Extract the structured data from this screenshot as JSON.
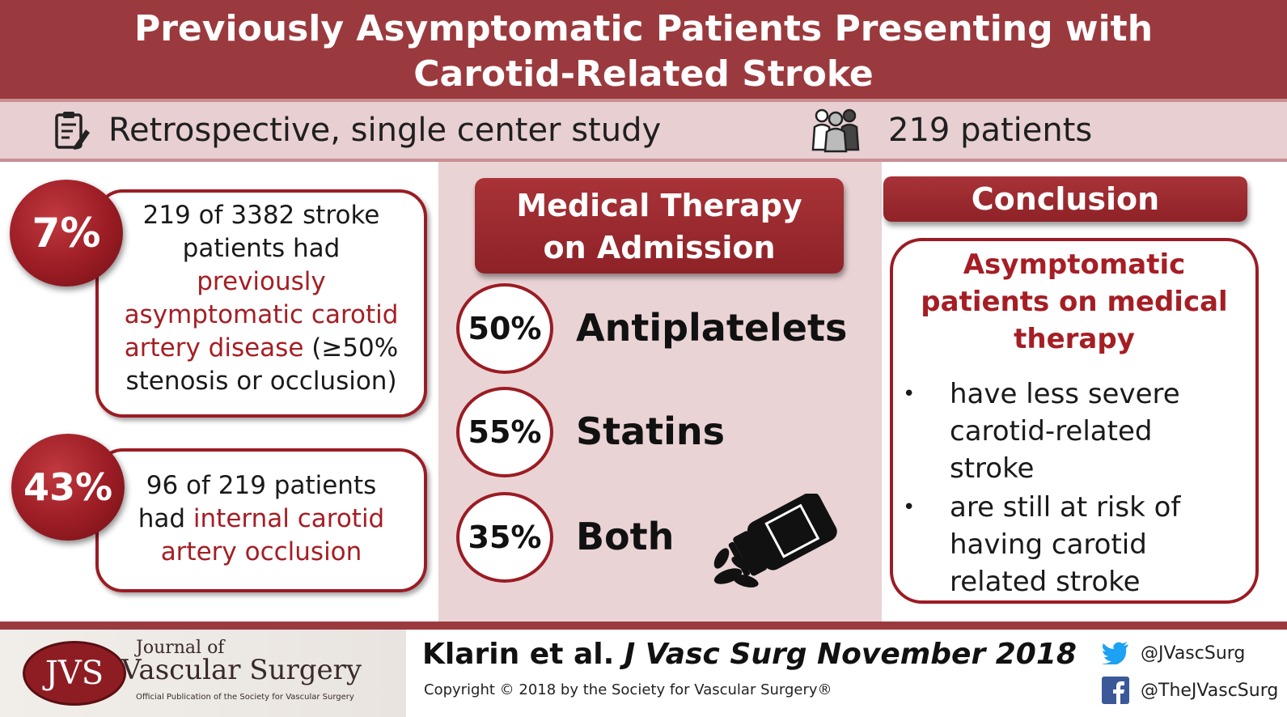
{
  "header": {
    "title_line1": "Previously Asymptomatic Patients Presenting with",
    "title_line2": "Carotid-Related Stroke"
  },
  "study": {
    "design": "Retrospective, single center study",
    "design_icon": "clipboard-icon",
    "patients": "219 patients",
    "patients_icon": "people-group-icon"
  },
  "findings": [
    {
      "percent": "7%",
      "line1": "219 of 3382 stroke",
      "line2": "patients had",
      "highlight1": "previously",
      "highlight2": "asymptomatic carotid",
      "highlight3": "artery disease",
      "line3_rest": " (≥50%",
      "line4": "stenosis or occlusion)"
    },
    {
      "percent": "43%",
      "line1": "96 of 219 patients",
      "line2_pre": "had ",
      "highlight1": "internal carotid",
      "highlight2": "artery occlusion"
    }
  ],
  "medical_therapy": {
    "title_line1": "Medical Therapy",
    "title_line2": "on Admission",
    "items": [
      {
        "percent": "50%",
        "label": "Antiplatelets"
      },
      {
        "percent": "55%",
        "label": "Statins"
      },
      {
        "percent": "35%",
        "label": "Both"
      }
    ],
    "pill_icon": "pill-bottle-icon"
  },
  "conclusion": {
    "title": "Conclusion",
    "head_line1": "Asymptomatic",
    "head_line2": "patients on medical",
    "head_line3": "therapy",
    "bullets": [
      {
        "dot": "•",
        "line1": "have less severe",
        "line2": "carotid-related",
        "line3": "stroke"
      },
      {
        "dot": "•",
        "line1": "are still at risk of",
        "line2": "having carotid",
        "line3": "related stroke"
      }
    ]
  },
  "footer": {
    "logo_abbrev": "JVS",
    "journal_of": "Journal of",
    "journal_name": "Vascular Surgery",
    "journal_tagline": "Official Publication of the Society for Vascular Surgery",
    "citation_authors": "Klarin et al.",
    "citation_journal": "J Vasc Surg November 2018",
    "copyright": "Copyright © 2018 by the Society for Vascular Surgery®",
    "twitter": "@JVascSurg",
    "facebook": "@TheJVascSurg"
  },
  "colors": {
    "header_bg": "#9b3a3e",
    "accent_red": "#a51e24",
    "subbar_bg": "#e8cfd1",
    "middle_bg": "#ead3d5"
  }
}
